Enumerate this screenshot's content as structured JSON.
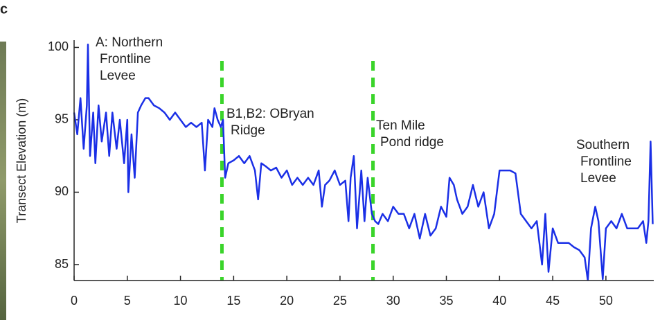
{
  "chart_data": {
    "type": "line",
    "panel": "c",
    "ylabel": "Transect Elevation (m)",
    "x": [
      0,
      0.3,
      0.6,
      0.9,
      1.2,
      1.3,
      1.5,
      1.8,
      2,
      2.3,
      2.6,
      3,
      3.3,
      3.6,
      4,
      4.3,
      4.7,
      5,
      5.1,
      5.4,
      5.7,
      6,
      6.3,
      6.7,
      7,
      7.5,
      8,
      8.5,
      9,
      9.5,
      10,
      10.5,
      11,
      11.5,
      12,
      12.3,
      12.6,
      13,
      13.2,
      13.5,
      13.8,
      14,
      14.2,
      14.5,
      15,
      15.5,
      16,
      16.5,
      17,
      17.3,
      17.6,
      18,
      18.5,
      19,
      19.5,
      20,
      20.5,
      21,
      21.5,
      22,
      22.5,
      23,
      23.3,
      23.6,
      24,
      24.5,
      25,
      25.5,
      25.8,
      26,
      26.3,
      26.6,
      27,
      27.3,
      27.6,
      28,
      28.3,
      28.6,
      29,
      29.5,
      30,
      30.5,
      31,
      31.5,
      32,
      32.5,
      33,
      33.5,
      34,
      34.5,
      35,
      35.3,
      35.7,
      36,
      36.5,
      37,
      37.5,
      38,
      38.5,
      39,
      39.5,
      40,
      40.5,
      41,
      41.5,
      42,
      42.5,
      43,
      43.5,
      44,
      44.3,
      44.6,
      45,
      45.5,
      46,
      46.5,
      47,
      47.5,
      48,
      48.3,
      48.6,
      49,
      49.3,
      49.7,
      50,
      50.5,
      51,
      51.5,
      52,
      52.5,
      53,
      53.5,
      53.8,
      54,
      54.2,
      54.4
    ],
    "values": [
      95.5,
      94,
      96.5,
      93,
      96,
      100.2,
      92.5,
      95.5,
      92,
      96,
      93.5,
      95.5,
      92.5,
      95.5,
      93,
      95,
      92,
      95,
      90,
      94,
      91,
      95.5,
      96,
      96.5,
      96.5,
      96,
      95.8,
      95.5,
      95,
      95.5,
      95,
      94.5,
      94.8,
      94.5,
      94.8,
      91.5,
      95,
      94.5,
      95.8,
      95,
      94.5,
      95,
      91,
      92,
      92.2,
      92.5,
      92,
      92.5,
      91.5,
      89.5,
      92,
      91.8,
      91.5,
      91.7,
      91,
      91.5,
      90.5,
      91,
      90.5,
      91,
      90.5,
      91.5,
      89,
      90.5,
      90.8,
      91.5,
      90.5,
      90.8,
      88,
      91,
      92.5,
      87.5,
      91.5,
      88,
      91,
      88.5,
      88,
      87.8,
      88.5,
      88,
      89,
      88.5,
      88.5,
      87.5,
      88.5,
      86.8,
      88.5,
      87,
      87.5,
      89,
      88.3,
      91,
      90.5,
      89.5,
      88.5,
      89,
      90.5,
      89,
      90,
      87.5,
      88.5,
      91.5,
      91.5,
      91.5,
      91.3,
      88.5,
      88,
      87.5,
      88,
      85,
      88.5,
      84.5,
      87.5,
      86.5,
      86.5,
      86.5,
      86.2,
      86,
      85.5,
      83.9,
      87.5,
      89,
      88,
      84,
      87.5,
      88,
      87.5,
      88.5,
      87.5,
      87.5,
      87.5,
      88,
      86.5,
      88,
      93.5,
      87.8
    ],
    "color": "#1a2fe6",
    "vlines": [
      13.9,
      28.1
    ],
    "vline_color": "#3ad42a",
    "xlim": [
      0,
      54.5
    ],
    "xticks": [
      0,
      5,
      10,
      15,
      20,
      25,
      30,
      35,
      40,
      45,
      50
    ],
    "ylim": [
      83.9,
      100.5
    ],
    "yticks": [
      85,
      90,
      95,
      100
    ],
    "annotations": [
      [
        "A: Northern",
        "Frontline",
        "Levee"
      ],
      [
        "B1,B2: OBryan",
        "Ridge"
      ],
      [
        "Ten Mile",
        "Pond ridge"
      ],
      [
        "Southern",
        "Frontline",
        "Levee"
      ]
    ]
  }
}
